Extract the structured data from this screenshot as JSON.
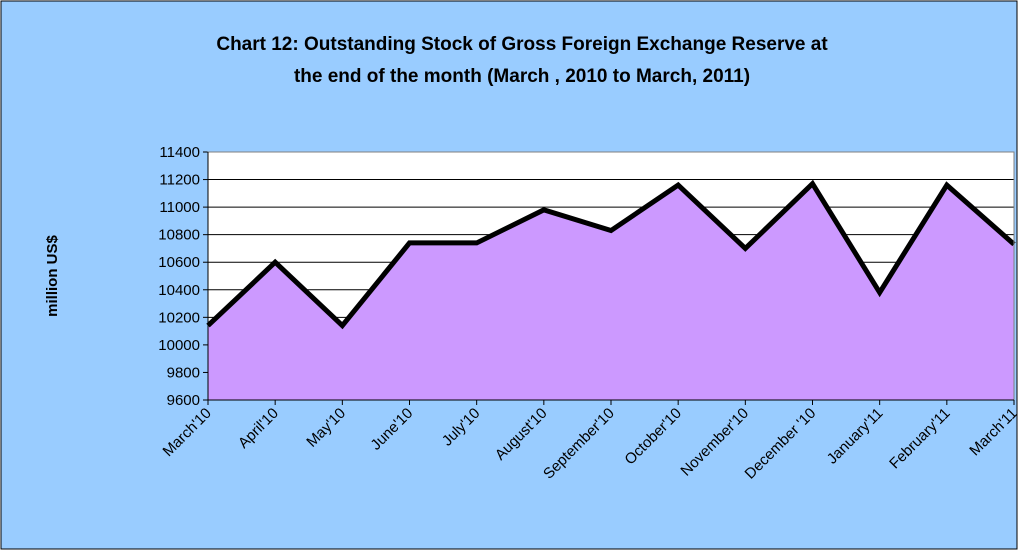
{
  "chart_data": {
    "type": "area",
    "title": [
      "Chart 12: Outstanding Stock of Gross Foreign Exchange Reserve at",
      "the end of the month (March , 2010 to March, 2011)"
    ],
    "y_label": "million US$",
    "categories": [
      "March'10",
      "April'10",
      "May'10",
      "June'10",
      "July'10",
      "August'10",
      "September'10",
      "October'10",
      "November'10",
      "December '10",
      "January'11",
      "February'11",
      "March'11"
    ],
    "values": [
      10140,
      10600,
      10140,
      10740,
      10740,
      10980,
      10830,
      11160,
      10700,
      11170,
      10380,
      11160,
      10730
    ],
    "color": "#cc99ff",
    "line_color": "#000000",
    "ylim": [
      9600,
      11400
    ],
    "yticks": [
      9600,
      9800,
      10000,
      10200,
      10400,
      10600,
      10800,
      11000,
      11200,
      11400
    ],
    "grid": true
  }
}
